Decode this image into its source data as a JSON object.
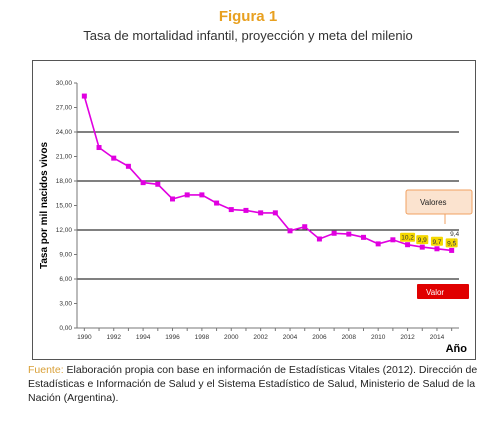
{
  "header": {
    "figure_label": "Figura 1",
    "subtitle": "Tasa de mortalidad infantil, proyección y meta del milenio"
  },
  "footer": {
    "source_label": "Fuente:",
    "source_text": " Elaboración propia con base en información de Estadísticas Vitales (2012). Dirección de Estadísticas e Información de Salud y el Sistema Estadístico de Salud, Ministerio de Salud de la Nación (Argentina)."
  },
  "colors": {
    "series": "#e000e0",
    "label_box": "#f5d800",
    "callout_values": "#fbe3cf",
    "callout_values_border": "#f0a060",
    "callout_value": "#e00000",
    "title": "#e8a020",
    "source_label": "#d9a038"
  },
  "chart_data": {
    "type": "line",
    "title": "",
    "xlabel": "Año",
    "ylabel": "Tasa por mil nacidos vivos",
    "x_ticks": [
      "1990",
      "1992",
      "1994",
      "1996",
      "1998",
      "2000",
      "2002",
      "2004",
      "2006",
      "2008",
      "2010",
      "2012",
      "2014"
    ],
    "y_ticks": [
      "0,00",
      "3,00",
      "6,00",
      "9,00",
      "12,00",
      "15,00",
      "18,00",
      "21,00",
      "24,00",
      "27,00",
      "30,00"
    ],
    "xlim": [
      1989.5,
      2015.5
    ],
    "ylim": [
      0,
      30
    ],
    "series": [
      {
        "values": [
          {
            "x": 1990,
            "y": 28.4
          },
          {
            "x": 1991,
            "y": 22.1
          },
          {
            "x": 1992,
            "y": 20.8
          },
          {
            "x": 1993,
            "y": 19.8
          },
          {
            "x": 1994,
            "y": 17.8
          },
          {
            "x": 1995,
            "y": 17.6
          },
          {
            "x": 1996,
            "y": 15.8
          },
          {
            "x": 1997,
            "y": 16.3
          },
          {
            "x": 1998,
            "y": 16.3
          },
          {
            "x": 1999,
            "y": 15.3
          },
          {
            "x": 2000,
            "y": 14.5
          },
          {
            "x": 2001,
            "y": 14.4
          },
          {
            "x": 2002,
            "y": 14.1
          },
          {
            "x": 2003,
            "y": 14.1
          },
          {
            "x": 2004,
            "y": 11.9
          },
          {
            "x": 2005,
            "y": 12.4
          },
          {
            "x": 2006,
            "y": 10.9
          },
          {
            "x": 2007,
            "y": 11.6
          },
          {
            "x": 2008,
            "y": 11.5
          },
          {
            "x": 2009,
            "y": 11.1
          },
          {
            "x": 2010,
            "y": 10.3
          },
          {
            "x": 2011,
            "y": 10.8
          },
          {
            "x": 2012,
            "y": 10.2
          },
          {
            "x": 2013,
            "y": 9.9
          },
          {
            "x": 2014,
            "y": 9.7
          },
          {
            "x": 2015,
            "y": 9.5
          }
        ]
      }
    ],
    "value_labels": [
      {
        "x": 2012,
        "y": 10.2,
        "text": "10,2"
      },
      {
        "x": 2013,
        "y": 9.9,
        "text": "9,9"
      },
      {
        "x": 2014,
        "y": 9.7,
        "text": "9,7"
      },
      {
        "x": 2015,
        "y": 9.5,
        "text": "9,5"
      }
    ],
    "goal": {
      "x": 2015,
      "y": 9.4,
      "text": "9,4"
    },
    "callouts": {
      "values_label": "Valores",
      "value_label": "Valor"
    },
    "grid_lines_y": [
      6,
      12,
      18,
      24
    ]
  }
}
